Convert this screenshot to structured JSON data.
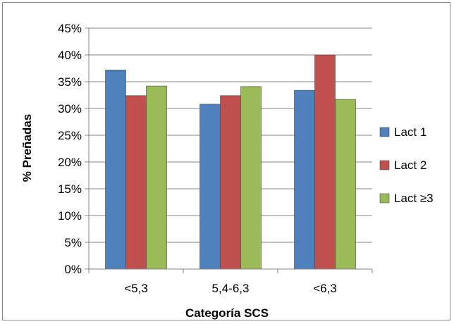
{
  "chart_data": {
    "type": "bar",
    "categories": [
      "<5,3",
      "5,4-6,3",
      "<6,3"
    ],
    "series": [
      {
        "name": "Lact 1",
        "values": [
          37.2,
          30.8,
          33.4
        ],
        "color": "#4f81bd"
      },
      {
        "name": "Lact 2",
        "values": [
          32.4,
          32.4,
          40.0
        ],
        "color": "#c0504d"
      },
      {
        "name": "Lact ≥3",
        "values": [
          34.2,
          34.1,
          31.7
        ],
        "color": "#9bbb59"
      }
    ],
    "xlabel": "Categoría SCS",
    "ylabel": "% Preñadas",
    "ylim": [
      0,
      45
    ],
    "yticks": [
      "0%",
      "5%",
      "10%",
      "15%",
      "20%",
      "25%",
      "30%",
      "35%",
      "40%",
      "45%"
    ],
    "grid": true,
    "legend_position": "right"
  }
}
